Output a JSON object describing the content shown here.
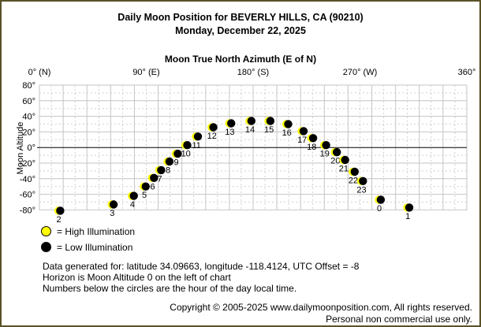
{
  "window": {
    "border_color": "#5a5128",
    "background_color": "#ffffff"
  },
  "header": {
    "title": "Daily Moon Position for BEVERLY HILLS, CA (90210)",
    "date": "Monday, December 22, 2025"
  },
  "chart_data": {
    "type": "scatter",
    "title": "Moon True North Azimuth (E of N)",
    "xlabel": "Moon True North Azimuth (E of N)",
    "ylabel": "Moon Altitude",
    "xlim": [
      0,
      360
    ],
    "ylim": [
      -80,
      80
    ],
    "grid": "on",
    "x_gridline_step_deg": 10,
    "y_gridline_step_deg": 10,
    "grid_color": "#c4c4c4",
    "grid_minor_color": "#cfcfcf",
    "horizon_line_color": "#000000",
    "high_illumination_color": "#ffff00",
    "low_illumination_color": "#000000",
    "x_ticks": [
      {
        "azimuth": 0,
        "label": "0° (N)"
      },
      {
        "azimuth": 90,
        "label": "90° (E)"
      },
      {
        "azimuth": 180,
        "label": "180° (S)"
      },
      {
        "azimuth": 270,
        "label": "270° (W)"
      },
      {
        "azimuth": 360,
        "label": "360°"
      }
    ],
    "y_ticks": [
      {
        "altitude": 80,
        "label": "80°"
      },
      {
        "altitude": 60,
        "label": "60°"
      },
      {
        "altitude": 40,
        "label": "40°"
      },
      {
        "altitude": 20,
        "label": "20°"
      },
      {
        "altitude": 0,
        "label": "0°"
      },
      {
        "altitude": -20,
        "label": "-20°"
      },
      {
        "altitude": -40,
        "label": "-40°"
      },
      {
        "altitude": -60,
        "label": "-60°"
      },
      {
        "altitude": -80,
        "label": "-80°"
      }
    ],
    "points": [
      {
        "hour": 0,
        "azimuth": 287,
        "altitude": -67,
        "illumination": "low"
      },
      {
        "hour": 1,
        "azimuth": 311,
        "altitude": -77,
        "illumination": "low"
      },
      {
        "hour": 2,
        "azimuth": 17,
        "altitude": -81,
        "illumination": "low"
      },
      {
        "hour": 3,
        "azimuth": 62,
        "altitude": -73,
        "illumination": "low"
      },
      {
        "hour": 4,
        "azimuth": 79,
        "altitude": -62,
        "illumination": "low"
      },
      {
        "hour": 5,
        "azimuth": 89,
        "altitude": -50,
        "illumination": "low"
      },
      {
        "hour": 6,
        "azimuth": 96,
        "altitude": -39,
        "illumination": "low"
      },
      {
        "hour": 7,
        "azimuth": 102,
        "altitude": -29,
        "illumination": "low"
      },
      {
        "hour": 8,
        "azimuth": 109,
        "altitude": -18,
        "illumination": "low"
      },
      {
        "hour": 9,
        "azimuth": 116,
        "altitude": -8,
        "illumination": "low"
      },
      {
        "hour": 10,
        "azimuth": 124,
        "altitude": 3,
        "illumination": "low"
      },
      {
        "hour": 11,
        "azimuth": 133,
        "altitude": 14,
        "illumination": "low"
      },
      {
        "hour": 12,
        "azimuth": 146,
        "altitude": 26,
        "illumination": "low"
      },
      {
        "hour": 13,
        "azimuth": 161,
        "altitude": 31,
        "illumination": "low"
      },
      {
        "hour": 14,
        "azimuth": 178,
        "altitude": 34,
        "illumination": "low"
      },
      {
        "hour": 15,
        "azimuth": 194,
        "altitude": 34,
        "illumination": "low"
      },
      {
        "hour": 16,
        "azimuth": 209,
        "altitude": 30,
        "illumination": "low"
      },
      {
        "hour": 17,
        "azimuth": 222,
        "altitude": 21,
        "illumination": "low"
      },
      {
        "hour": 18,
        "azimuth": 230,
        "altitude": 12,
        "illumination": "low"
      },
      {
        "hour": 19,
        "azimuth": 241,
        "altitude": 3,
        "illumination": "low"
      },
      {
        "hour": 20,
        "azimuth": 250,
        "altitude": -6,
        "illumination": "low"
      },
      {
        "hour": 21,
        "azimuth": 257,
        "altitude": -16,
        "illumination": "low"
      },
      {
        "hour": 22,
        "azimuth": 265,
        "altitude": -31,
        "illumination": "low"
      },
      {
        "hour": 23,
        "azimuth": 272,
        "altitude": -43,
        "illumination": "low"
      }
    ]
  },
  "legend": {
    "high_label": "= High Illumination",
    "low_label": "= Low Illumination"
  },
  "footer": {
    "line1": "Data generated for: latitude 34.09663, longitude -118.4124, UTC Offset = -8",
    "line2": "Horizon is Moon Altitude 0 on the left of chart",
    "line3": "Numbers below the circles are the hour of the day local time."
  },
  "copyright": {
    "line1": "Copyright © 2005-2025 www.dailymoonposition.com, All rights reserved.",
    "line2": "Personal non commercial use only."
  }
}
